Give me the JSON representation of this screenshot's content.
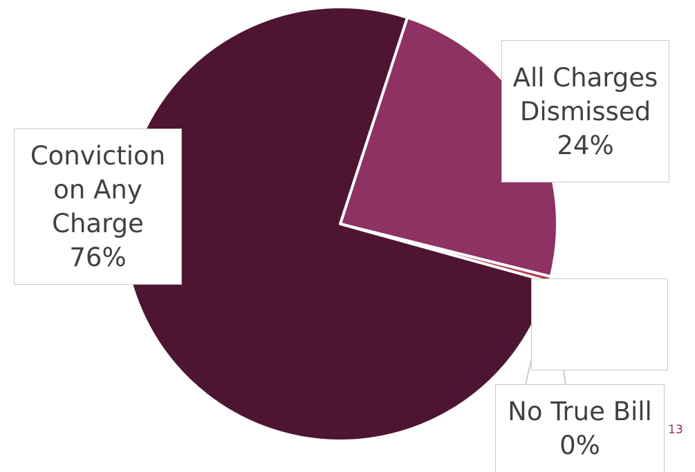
{
  "chart_data": {
    "type": "pie",
    "slices": [
      {
        "label": "Conviction on Any Charge",
        "label_lines": [
          "Conviction",
          "on Any",
          "Charge"
        ],
        "value": 76,
        "value_label": "76%",
        "color": "#4e1532"
      },
      {
        "label": "All Charges Dismissed",
        "label_lines": [
          "All Charges",
          "Dismissed"
        ],
        "value": 24,
        "value_label": "24%",
        "color": "#8d3262"
      },
      {
        "label": "No True Bill",
        "label_lines": [
          "No True Bill"
        ],
        "value": 0.4,
        "value_label": "0%",
        "color": "#b33a52"
      }
    ]
  },
  "page_number": "13"
}
